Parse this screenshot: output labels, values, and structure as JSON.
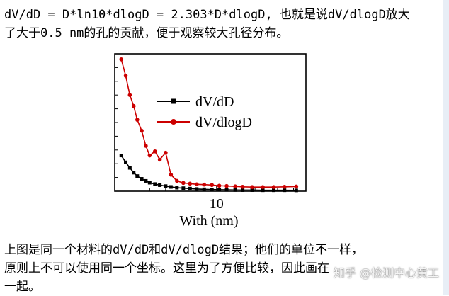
{
  "top_text": {
    "line1": "dV/dD = D*ln10*dlogD = 2.303*D*dlogD, 也就是说dV/dlogD放大",
    "line2": "了大于0.5 nm的孔的贡献，便于观察较大孔径分布。"
  },
  "bottom_text": {
    "line1": "上图是同一个材料的dV/dD和dV/dlogD结果；他们的单位不一样，",
    "line2": "原则上不可以使用同一个坐标。这里为了方便比较，因此画在",
    "line3": "一起。"
  },
  "watermark": "知乎 @检测中心黄工",
  "chart_data": {
    "type": "line",
    "xscale": "log",
    "xlim": [
      1.6,
      50
    ],
    "ylim": [
      0,
      10
    ],
    "xlabel": "With (nm)",
    "ylabel": "",
    "xtick_labels": [
      "10"
    ],
    "legend_position": "top-right",
    "series": [
      {
        "name": "dV/dD",
        "color": "#000000",
        "marker": "square",
        "x": [
          1.8,
          1.95,
          2.1,
          2.25,
          2.4,
          2.6,
          2.8,
          3.0,
          3.3,
          3.6,
          4.0,
          4.4,
          4.9,
          5.5,
          6.2,
          7.0,
          8.0,
          9.2,
          10.5,
          12,
          14,
          16,
          19,
          23,
          28,
          34,
          42
        ],
        "values": [
          2.6,
          2.1,
          1.7,
          1.35,
          1.1,
          0.9,
          0.75,
          0.62,
          0.52,
          0.44,
          0.37,
          0.31,
          0.26,
          0.22,
          0.19,
          0.16,
          0.14,
          0.12,
          0.11,
          0.1,
          0.09,
          0.08,
          0.08,
          0.07,
          0.07,
          0.07,
          0.06
        ]
      },
      {
        "name": "dV/dlogD",
        "color": "#cc0000",
        "marker": "circle",
        "x": [
          1.8,
          1.95,
          2.1,
          2.25,
          2.4,
          2.6,
          2.8,
          3.0,
          3.3,
          3.6,
          4.0,
          4.4,
          4.9,
          5.5,
          6.2,
          7.0,
          8.0,
          9.2,
          10.5,
          12,
          14,
          16,
          19,
          23,
          28,
          34,
          42
        ],
        "values": [
          9.6,
          8.4,
          7.0,
          6.2,
          5.2,
          4.4,
          3.3,
          2.6,
          2.9,
          2.3,
          2.8,
          1.2,
          0.75,
          0.6,
          0.55,
          0.5,
          0.48,
          0.45,
          0.4,
          0.38,
          0.35,
          0.32,
          0.3,
          0.3,
          0.3,
          0.32,
          0.34
        ]
      }
    ]
  }
}
